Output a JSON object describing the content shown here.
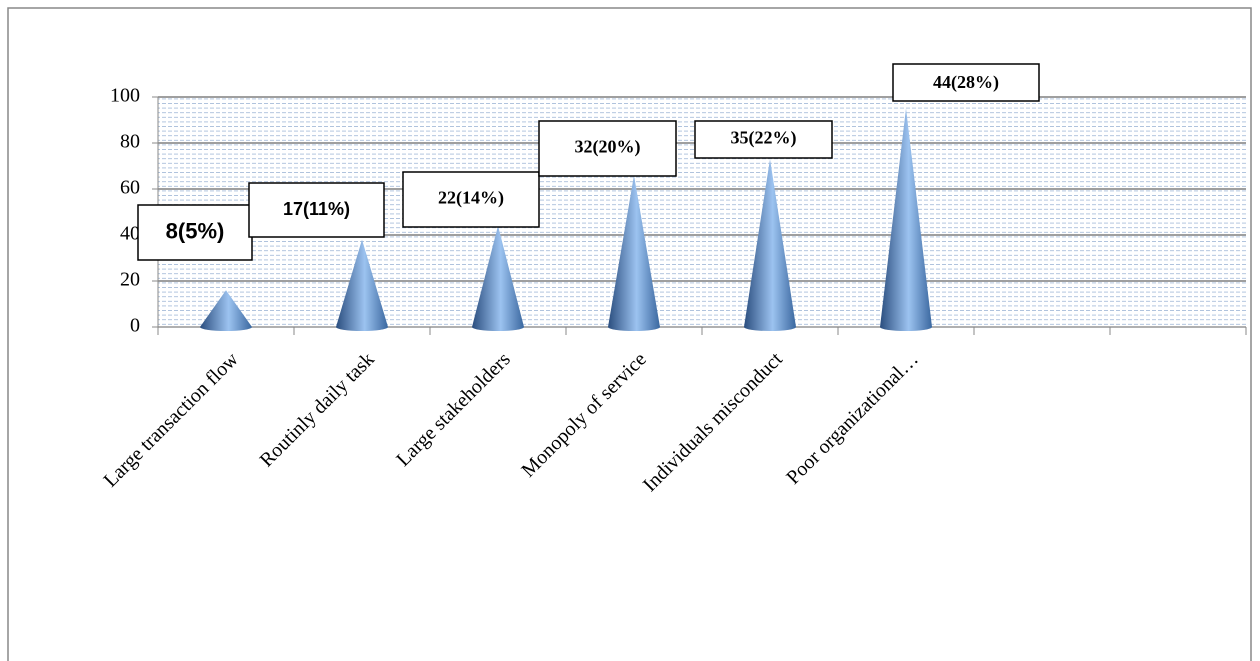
{
  "chart_data": {
    "type": "cone",
    "categories": [
      "Large transaction flow",
      "Routinly daily task",
      "Large stakeholders",
      "Monopoly of service",
      "Individuals misconduct",
      "Poor organizational…",
      null,
      null
    ],
    "values": [
      16,
      38,
      44,
      66,
      73,
      95,
      null,
      null
    ],
    "annotations": [
      "8(5%)",
      "17(11%)",
      "22(14%)",
      "32(20%)",
      "35(22%)",
      "44(28%)"
    ],
    "color": "#4f81bd",
    "ylim": [
      0,
      100
    ],
    "yticks": [
      0,
      20,
      40,
      60,
      80,
      100
    ],
    "grid": true
  }
}
